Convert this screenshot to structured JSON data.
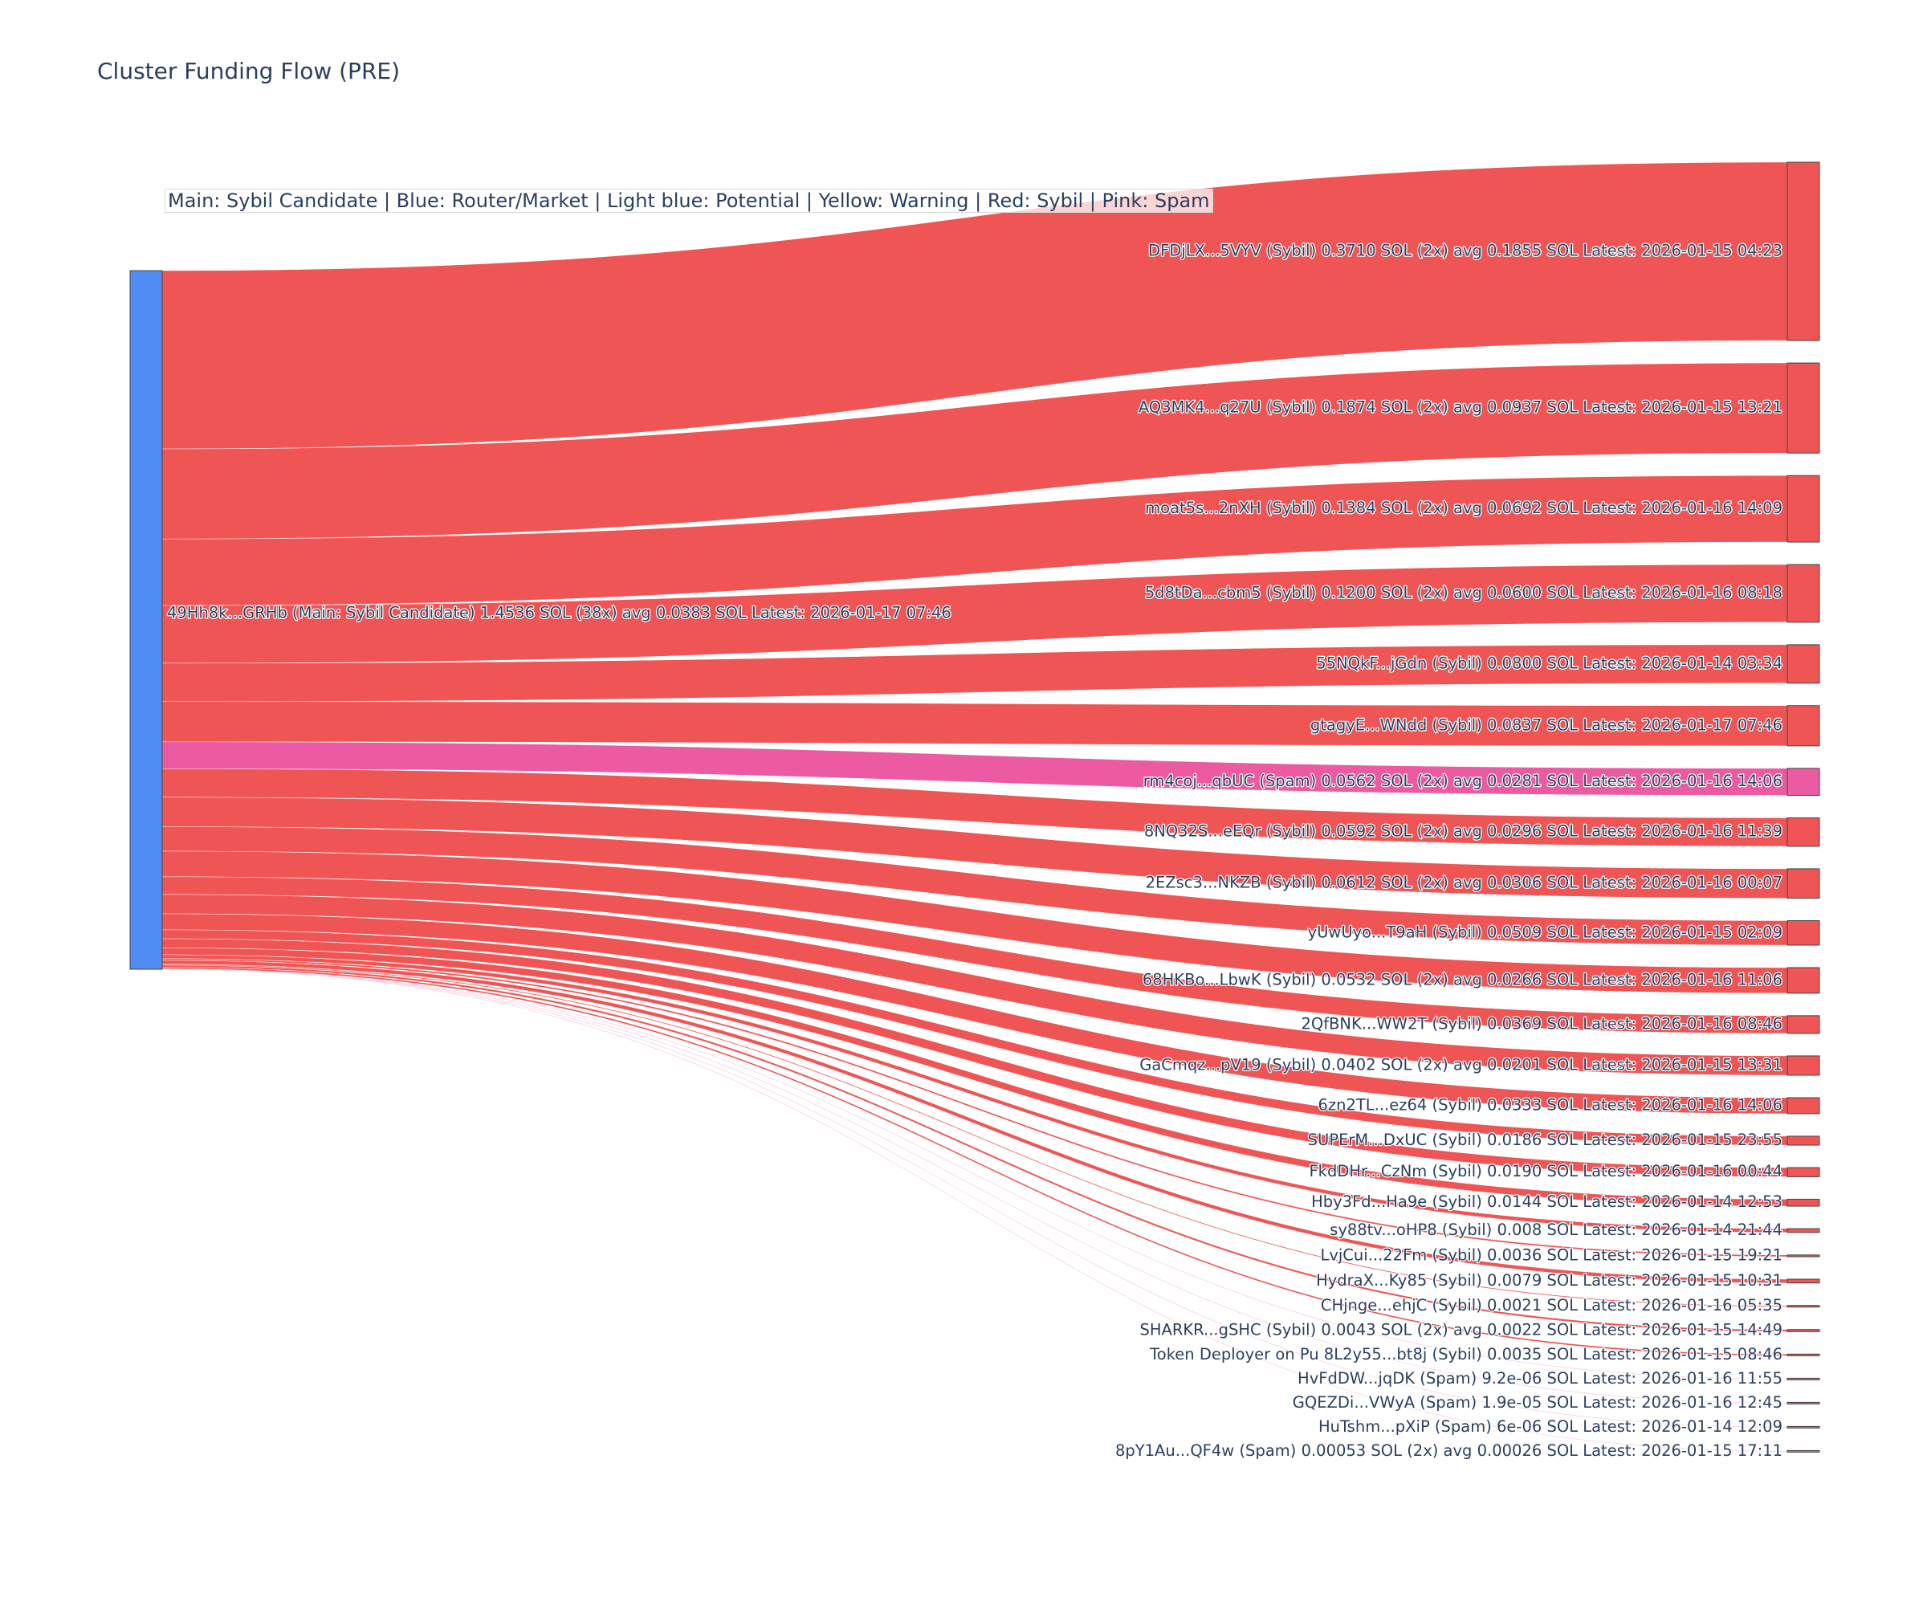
{
  "chart_data": {
    "type": "sankey",
    "title": "Cluster Funding Flow (PRE)",
    "annotation": "Main: Sybil Candidate  |  Blue: Router/Market | Light blue: Potential | Yellow: Warning | Red: Sybil | Pink: Spam",
    "colors": {
      "main": "#4f8df5",
      "sybil": "#ef5555",
      "spam": "#ec5aa2",
      "node_border": "#444444"
    },
    "source": {
      "label": "49Hh8k...GRHb (Main: Sybil Candidate) 1.4536 SOL (38x) avg 0.0383 SOL Latest: 2026-01-17 07:46",
      "category": "main",
      "value": 1.4536
    },
    "targets": [
      {
        "label": "DFDjLX...5VYV (Sybil) 0.3710 SOL (2x) avg 0.1855 SOL Latest: 2026-01-15 04:23",
        "value": 0.371,
        "category": "sybil"
      },
      {
        "label": "AQ3MK4...q27U (Sybil) 0.1874 SOL (2x) avg 0.0937 SOL Latest: 2026-01-15 13:21",
        "value": 0.1874,
        "category": "sybil"
      },
      {
        "label": "moat5s...2nXH (Sybil) 0.1384 SOL (2x) avg 0.0692 SOL Latest: 2026-01-16 14:09",
        "value": 0.1384,
        "category": "sybil"
      },
      {
        "label": "5d8tDa...cbm5 (Sybil) 0.1200 SOL (2x) avg 0.0600 SOL Latest: 2026-01-16 08:18",
        "value": 0.12,
        "category": "sybil"
      },
      {
        "label": "55NQkF...jGdn (Sybil) 0.0800 SOL Latest: 2026-01-14 03:34",
        "value": 0.08,
        "category": "sybil"
      },
      {
        "label": "gtagyE...WNdd (Sybil) 0.0837 SOL Latest: 2026-01-17 07:46",
        "value": 0.0837,
        "category": "sybil"
      },
      {
        "label": "rm4coj...qbUC (Spam) 0.0562 SOL (2x) avg 0.0281 SOL Latest: 2026-01-16 14:06",
        "value": 0.0562,
        "category": "spam"
      },
      {
        "label": "8NQ32S...eEQr (Sybil) 0.0592 SOL (2x) avg 0.0296 SOL Latest: 2026-01-16 11:39",
        "value": 0.0592,
        "category": "sybil"
      },
      {
        "label": "2EZsc3...NKZB (Sybil) 0.0612 SOL (2x) avg 0.0306 SOL Latest: 2026-01-16 00:07",
        "value": 0.0612,
        "category": "sybil"
      },
      {
        "label": "yUwUyo...T9aH (Sybil) 0.0509 SOL Latest: 2026-01-15 02:09",
        "value": 0.0509,
        "category": "sybil"
      },
      {
        "label": "68HKBo...LbwK (Sybil) 0.0532 SOL (2x) avg 0.0266 SOL Latest: 2026-01-16 11:06",
        "value": 0.0532,
        "category": "sybil"
      },
      {
        "label": "2QfBNK...WW2T (Sybil) 0.0369 SOL Latest: 2026-01-16 08:46",
        "value": 0.0369,
        "category": "sybil"
      },
      {
        "label": "GaCmqz...pV19 (Sybil) 0.0402 SOL (2x) avg 0.0201 SOL Latest: 2026-01-15 13:31",
        "value": 0.0402,
        "category": "sybil"
      },
      {
        "label": "6zn2TL...ez64 (Sybil) 0.0333 SOL Latest: 2026-01-16 14:06",
        "value": 0.0333,
        "category": "sybil"
      },
      {
        "label": "SUPErM...DxUC (Sybil) 0.0186 SOL Latest: 2026-01-15 23:55",
        "value": 0.0186,
        "category": "sybil"
      },
      {
        "label": "FkdDHr...CzNm (Sybil) 0.0190 SOL Latest: 2026-01-16 00:44",
        "value": 0.019,
        "category": "sybil"
      },
      {
        "label": "Hby3Fd...Ha9e (Sybil) 0.0144 SOL Latest: 2026-01-14 12:53",
        "value": 0.0144,
        "category": "sybil"
      },
      {
        "label": "sy88tv...oHP8 (Sybil) 0.008 SOL Latest: 2026-01-14 21:44",
        "value": 0.008,
        "category": "sybil"
      },
      {
        "label": "LvjCui...22Fm (Sybil) 0.0036 SOL Latest: 2026-01-15 19:21",
        "value": 0.0036,
        "category": "sybil"
      },
      {
        "label": "HydraX...Ky85 (Sybil) 0.0079 SOL Latest: 2026-01-15 10:31",
        "value": 0.0079,
        "category": "sybil"
      },
      {
        "label": "CHjnge...ehjC (Sybil) 0.0021 SOL Latest: 2026-01-16 05:35",
        "value": 0.0021,
        "category": "sybil"
      },
      {
        "label": "SHARKR...gSHC (Sybil) 0.0043 SOL (2x) avg 0.0022 SOL Latest: 2026-01-15 14:49",
        "value": 0.0043,
        "category": "sybil"
      },
      {
        "label": "Token Deployer on Pu 8L2y55...bt8j (Sybil) 0.0035 SOL Latest: 2026-01-15 08:46",
        "value": 0.0035,
        "category": "sybil"
      },
      {
        "label": "HvFdDW...jqDK (Spam) 9.2e-06 SOL Latest: 2026-01-16 11:55",
        "value": 9.2e-06,
        "category": "spam"
      },
      {
        "label": "GQEZDi...VWyA (Spam) 1.9e-05 SOL Latest: 2026-01-16 12:45",
        "value": 1.9e-05,
        "category": "spam"
      },
      {
        "label": "HuTshm...pXiP (Spam) 6e-06 SOL Latest: 2026-01-14 12:09",
        "value": 6e-06,
        "category": "spam"
      },
      {
        "label": "8pY1Au...QF4w (Spam) 0.00053 SOL (2x) avg 0.00026 SOL Latest: 2026-01-15 17:11",
        "value": 0.00053,
        "category": "spam"
      }
    ]
  }
}
